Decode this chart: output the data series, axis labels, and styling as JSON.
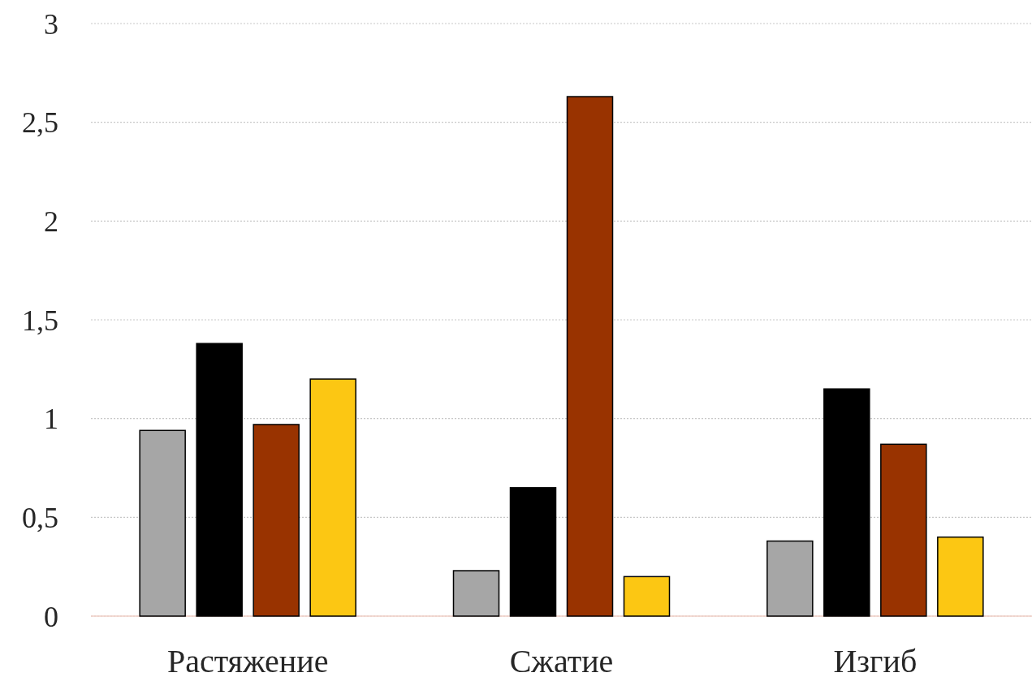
{
  "chart_data": {
    "type": "bar",
    "categories": [
      "Растяжение",
      "Сжатие",
      "Изгиб"
    ],
    "series": [
      {
        "color": "#a6a6a6",
        "values": [
          0.94,
          0.23,
          0.38
        ]
      },
      {
        "color": "#000000",
        "values": [
          1.38,
          0.65,
          1.15
        ]
      },
      {
        "color": "#993300",
        "values": [
          0.97,
          2.63,
          0.87
        ]
      },
      {
        "color": "#fcc713",
        "values": [
          1.2,
          0.2,
          0.4
        ]
      }
    ],
    "ylim": [
      0,
      3
    ],
    "yticks": [
      0,
      {
        "value": 0.5,
        "label": "0,5"
      },
      1,
      {
        "value": 1.5,
        "label": "1,5"
      },
      2,
      {
        "value": 2.5,
        "label": "2,5"
      },
      3
    ],
    "grid": "y"
  }
}
